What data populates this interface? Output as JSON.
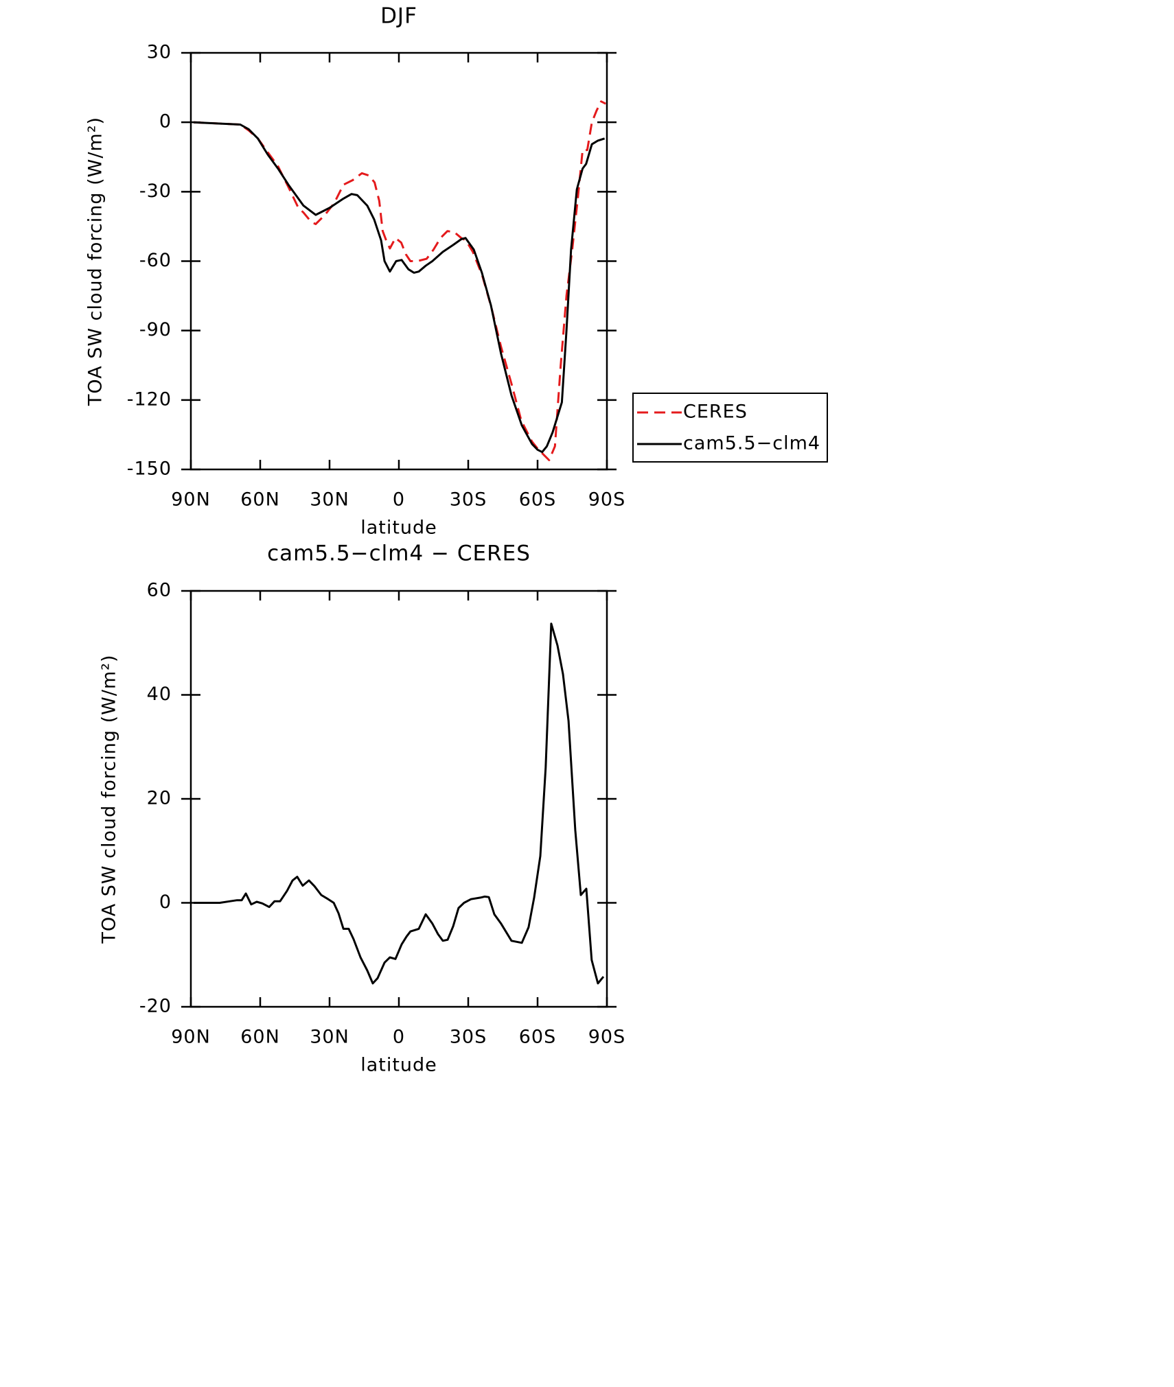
{
  "chart_data": [
    {
      "type": "line",
      "title": "DJF",
      "xlabel": "latitude",
      "ylabel": "TOA SW cloud forcing (W/m²)",
      "xlim": [
        90,
        -90
      ],
      "ylim": [
        30,
        -150
      ],
      "xticks": [
        {
          "value": 90,
          "label": "90N"
        },
        {
          "value": 60,
          "label": "60N"
        },
        {
          "value": 30,
          "label": "30N"
        },
        0,
        {
          "value": -30,
          "label": "30S"
        },
        {
          "value": -60,
          "label": "60S"
        },
        {
          "value": -90,
          "label": "90S"
        }
      ],
      "yticks": [
        30,
        0,
        -30,
        -60,
        -90,
        -120,
        -150
      ],
      "legend": "right",
      "series": [
        {
          "name": "CERES",
          "color": "#e41a1c",
          "dashed": true,
          "x": [
            88.8,
            68.6,
            65,
            61,
            56.7,
            52.3,
            47.8,
            43.5,
            41.3,
            38,
            36,
            32,
            28,
            24,
            20,
            16,
            13,
            10.5,
            8.5,
            7,
            5.5,
            3.9,
            1.5,
            -1,
            -3,
            -5,
            -8,
            -12,
            -15,
            -18,
            -21,
            -24,
            -27,
            -29,
            -32,
            -36,
            -40,
            -44.2,
            -48.7,
            -53,
            -57.6,
            -60,
            -63,
            -65,
            -67.5,
            -70,
            -72.5,
            -75,
            -77.5,
            -79.5,
            -81.5,
            -83.5,
            -85.5,
            -87.5,
            -89.5
          ],
          "values": [
            0,
            -1,
            -3.5,
            -7,
            -13,
            -19,
            -28,
            -37,
            -39,
            -43,
            -44,
            -40,
            -35,
            -27,
            -25,
            -22,
            -23,
            -26,
            -34,
            -47,
            -51,
            -54.5,
            -50,
            -52,
            -57,
            -60,
            -60,
            -59,
            -55,
            -50,
            -47,
            -47.5,
            -50,
            -51,
            -56,
            -66,
            -80,
            -97,
            -113,
            -129,
            -138,
            -141,
            -144,
            -146,
            -140,
            -105,
            -75,
            -55,
            -32,
            -12,
            -12,
            0,
            5,
            9,
            8
          ]
        },
        {
          "name": "cam5.5−clm4",
          "color": "#000000",
          "dashed": false,
          "x": [
            88.8,
            68.6,
            65,
            61,
            56.7,
            52.3,
            47.8,
            41.3,
            36,
            30,
            24,
            20.5,
            18,
            13.7,
            10.7,
            7.7,
            6.2,
            3.9,
            1.2,
            -1.2,
            -4.1,
            -6.5,
            -8.6,
            -11.6,
            -14.5,
            -19,
            -23.5,
            -27,
            -28.8,
            -32.4,
            -35.9,
            -39.8,
            -44.2,
            -48.7,
            -53.2,
            -57.6,
            -60,
            -62,
            -64,
            -66.5,
            -70.5,
            -72.5,
            -74.5,
            -77,
            -79.5,
            -81,
            -83.5,
            -86,
            -89
          ],
          "values": [
            0,
            -1,
            -3,
            -7,
            -14,
            -20,
            -27,
            -36,
            -40,
            -37,
            -33,
            -31,
            -31.5,
            -36,
            -42,
            -51,
            -60,
            -64.5,
            -60,
            -59.5,
            -63.5,
            -65,
            -64.5,
            -62,
            -60,
            -56,
            -53,
            -50.5,
            -50,
            -55,
            -65,
            -79,
            -100,
            -118,
            -131,
            -139,
            -141.5,
            -142.5,
            -140,
            -134,
            -121,
            -90,
            -55,
            -29,
            -20,
            -18,
            -9.5,
            -8,
            -7
          ]
        }
      ]
    },
    {
      "type": "line",
      "title": "cam5.5−clm4 − CERES",
      "xlabel": "latitude",
      "ylabel": "TOA SW cloud forcing (W/m²)",
      "xlim": [
        90,
        -90
      ],
      "ylim": [
        60,
        -20
      ],
      "xticks": [
        {
          "value": 90,
          "label": "90N"
        },
        {
          "value": 60,
          "label": "60N"
        },
        {
          "value": 30,
          "label": "30N"
        },
        0,
        {
          "value": -30,
          "label": "30S"
        },
        {
          "value": -60,
          "label": "60S"
        },
        {
          "value": -90,
          "label": "90S"
        }
      ],
      "yticks": [
        60,
        40,
        20,
        0,
        -20
      ],
      "series": [
        {
          "color": "#000000",
          "dashed": false,
          "x": [
            88.8,
            77.5,
            73,
            70,
            68,
            66.2,
            63.9,
            61.5,
            59.1,
            56.1,
            53.8,
            51.4,
            48.4,
            46,
            44,
            41.6,
            38.9,
            36.5,
            33.6,
            30.6,
            28.2,
            26.1,
            24,
            21.7,
            19.6,
            16.6,
            13.7,
            11.3,
            9.2,
            6.2,
            3.9,
            1.5,
            -1.2,
            -3.3,
            -5,
            -8.6,
            -11.6,
            -14.5,
            -16.9,
            -19,
            -21.1,
            -23.5,
            -25.8,
            -28.2,
            -31.2,
            -35.3,
            -37.1,
            -38.9,
            -41.3,
            -44.2,
            -48.7,
            -53.2,
            -56.1,
            -58.5,
            -61.2,
            -63.5,
            -65.9,
            -68.6,
            -71,
            -73.4,
            -76.3,
            -78.7,
            -81.1,
            -83.4,
            -86.1,
            -88.5
          ],
          "values": [
            0,
            0,
            0.3,
            0.5,
            0.5,
            1.8,
            -0.3,
            0.2,
            -0.1,
            -0.8,
            0.3,
            0.3,
            2.3,
            4.3,
            5,
            3.3,
            4.3,
            3.2,
            1.5,
            0.7,
            0,
            -2,
            -5,
            -5,
            -7,
            -10.5,
            -13,
            -15.5,
            -14.5,
            -11.5,
            -10.5,
            -10.8,
            -8,
            -6.5,
            -5.5,
            -5,
            -2.2,
            -4,
            -6,
            -7.3,
            -7.1,
            -4.5,
            -1,
            0,
            0.7,
            1,
            1.2,
            1.1,
            -2.2,
            -4,
            -7.3,
            -7.7,
            -4.7,
            1,
            9,
            26,
            53.7,
            49.5,
            44,
            35,
            14,
            1.5,
            2.7,
            -11,
            -15.5,
            -14.2
          ]
        }
      ]
    }
  ]
}
